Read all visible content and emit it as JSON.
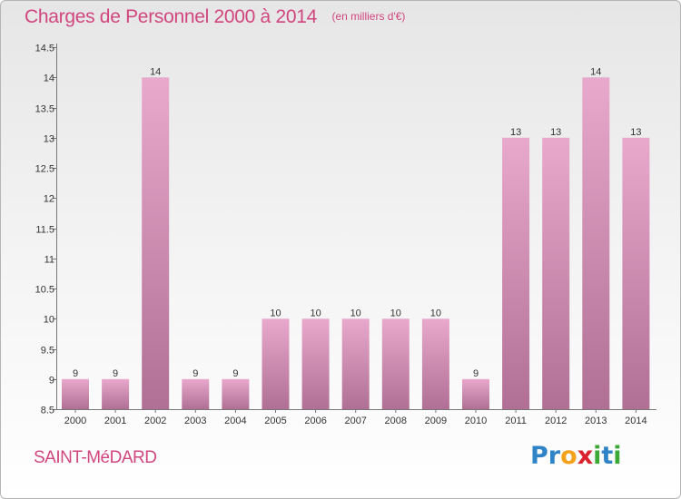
{
  "title": "Charges de Personnel 2000 à 2014",
  "subtitle": "(en milliers d'€)",
  "commune": "SAINT-MéDARD",
  "logo": {
    "text": "Proxiti",
    "letters": [
      {
        "ch": "P",
        "color": "#2e84c6"
      },
      {
        "ch": "r",
        "color": "#2e84c6"
      },
      {
        "ch": "o",
        "color": "#f4a21c"
      },
      {
        "ch": "x",
        "color": "#d9232e"
      },
      {
        "ch": "i",
        "color": "#3aa935"
      },
      {
        "ch": "t",
        "color": "#2e84c6"
      },
      {
        "ch": "i",
        "color": "#3aa935"
      }
    ]
  },
  "colors": {
    "bar_top": "#e8a9cd",
    "bar_bottom": "#b06f94",
    "title": "#d1467f"
  },
  "chart_data": {
    "type": "bar",
    "title": "Charges de Personnel 2000 à 2014",
    "subtitle": "(en milliers d'€)",
    "xlabel": "",
    "ylabel": "",
    "categories": [
      "2000",
      "2001",
      "2002",
      "2003",
      "2004",
      "2005",
      "2006",
      "2007",
      "2008",
      "2009",
      "2010",
      "2011",
      "2012",
      "2013",
      "2014"
    ],
    "values": [
      9,
      9,
      14,
      9,
      9,
      10,
      10,
      10,
      10,
      10,
      9,
      13,
      13,
      14,
      13
    ],
    "data_labels": [
      "9",
      "9",
      "14",
      "9",
      "9",
      "10",
      "10",
      "10",
      "10",
      "10",
      "9",
      "13",
      "13",
      "14",
      "13"
    ],
    "ylim": [
      8.5,
      14.5
    ],
    "yticks": [
      8.5,
      9,
      9.5,
      10,
      10.5,
      11,
      11.5,
      12,
      12.5,
      13,
      13.5,
      14,
      14.5
    ],
    "ytick_labels": [
      "8.5",
      "9",
      "9.5",
      "10",
      "10.5",
      "11",
      "11.5",
      "12",
      "12.5",
      "13",
      "13.5",
      "14",
      "14.5"
    ],
    "grid": false
  }
}
